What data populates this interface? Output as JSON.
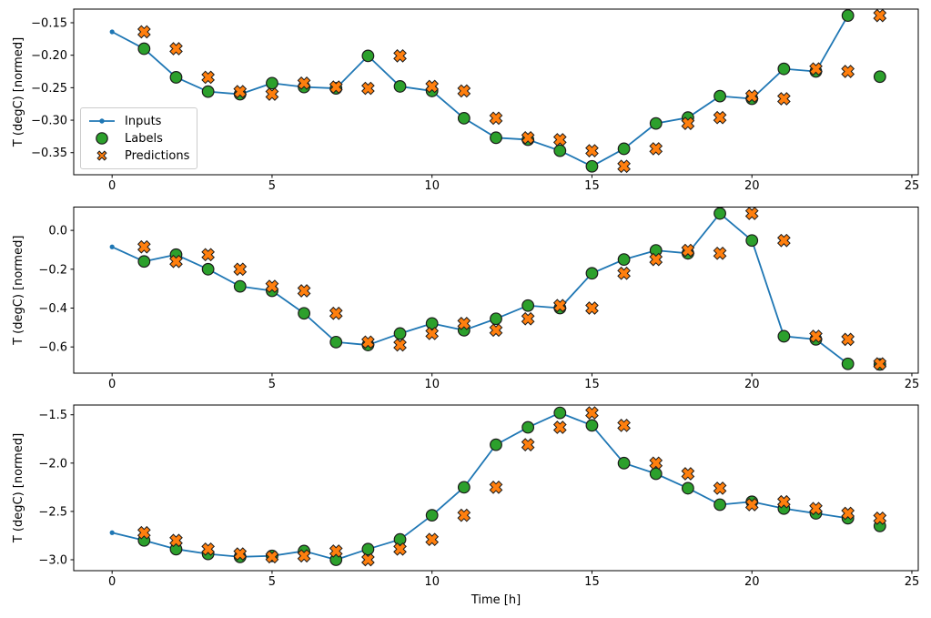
{
  "figure": {
    "xlabel": "Time [h]",
    "ylabel": "T (degC) [normed]",
    "background": "#ffffff",
    "legend": {
      "items": [
        {
          "label": "Inputs",
          "marker": "line-dot",
          "color": "#1f77b4"
        },
        {
          "label": "Labels",
          "marker": "circle",
          "color": "#2ca02c"
        },
        {
          "label": "Predictions",
          "marker": "x-cross",
          "color": "#ff7f0e"
        }
      ]
    }
  },
  "chart_data": [
    {
      "type": "line",
      "ylabel": "T (degC) [normed]",
      "grid": false,
      "legend_position": "center-left",
      "xlim": [
        -1.2,
        25.2
      ],
      "ylim": [
        -0.384,
        -0.129
      ],
      "xticks": {
        "values": [
          0,
          5,
          10,
          15,
          20,
          25
        ],
        "labels": [
          "0",
          "5",
          "10",
          "15",
          "20",
          "25"
        ]
      },
      "yticks": {
        "values": [
          -0.15,
          -0.2,
          -0.25,
          -0.3,
          -0.35
        ],
        "labels": [
          "−0.15",
          "−0.20",
          "−0.25",
          "−0.30",
          "−0.35"
        ]
      },
      "series": [
        {
          "name": "Inputs",
          "type": "line",
          "marker": "dot",
          "color": "#1f77b4",
          "x": [
            0,
            1,
            2,
            3,
            4,
            5,
            6,
            7,
            8,
            9,
            10,
            11,
            12,
            13,
            14,
            15,
            16,
            17,
            18,
            19,
            20,
            21,
            22,
            23
          ],
          "y": [
            -0.164,
            -0.19,
            -0.234,
            -0.256,
            -0.26,
            -0.243,
            -0.249,
            -0.251,
            -0.201,
            -0.248,
            -0.255,
            -0.297,
            -0.327,
            -0.33,
            -0.347,
            -0.371,
            -0.344,
            -0.305,
            -0.296,
            -0.263,
            -0.267,
            -0.221,
            -0.225,
            -0.139
          ]
        },
        {
          "name": "Labels",
          "type": "scatter",
          "marker": "circle",
          "color": "#2ca02c",
          "edge_color": "#1a1a1a",
          "x": [
            1,
            2,
            3,
            4,
            5,
            6,
            7,
            8,
            9,
            10,
            11,
            12,
            13,
            14,
            15,
            16,
            17,
            18,
            19,
            20,
            21,
            22,
            23,
            24
          ],
          "y": [
            -0.19,
            -0.234,
            -0.256,
            -0.26,
            -0.243,
            -0.249,
            -0.251,
            -0.201,
            -0.248,
            -0.255,
            -0.297,
            -0.327,
            -0.33,
            -0.347,
            -0.371,
            -0.344,
            -0.305,
            -0.296,
            -0.263,
            -0.267,
            -0.221,
            -0.225,
            -0.139,
            -0.233
          ]
        },
        {
          "name": "Predictions",
          "type": "scatter",
          "marker": "X",
          "color": "#ff7f0e",
          "edge_color": "#1a1a1a",
          "x": [
            1,
            2,
            3,
            4,
            5,
            6,
            7,
            8,
            9,
            10,
            11,
            12,
            13,
            14,
            15,
            16,
            17,
            18,
            19,
            20,
            21,
            22,
            23,
            24
          ],
          "y": [
            -0.164,
            -0.19,
            -0.234,
            -0.256,
            -0.26,
            -0.243,
            -0.249,
            -0.251,
            -0.201,
            -0.248,
            -0.255,
            -0.297,
            -0.327,
            -0.33,
            -0.347,
            -0.371,
            -0.344,
            -0.305,
            -0.296,
            -0.263,
            -0.267,
            -0.221,
            -0.225,
            -0.139
          ]
        }
      ]
    },
    {
      "type": "line",
      "ylabel": "T (degC) [normed]",
      "grid": false,
      "xlim": [
        -1.2,
        25.2
      ],
      "ylim": [
        -0.735,
        0.12
      ],
      "xticks": {
        "values": [
          0,
          5,
          10,
          15,
          20,
          25
        ],
        "labels": [
          "0",
          "5",
          "10",
          "15",
          "20",
          "25"
        ]
      },
      "yticks": {
        "values": [
          0.0,
          -0.2,
          -0.4,
          -0.6
        ],
        "labels": [
          "0.0",
          "−0.2",
          "−0.4",
          "−0.6"
        ]
      },
      "series": [
        {
          "name": "Inputs",
          "type": "line",
          "marker": "dot",
          "color": "#1f77b4",
          "x": [
            0,
            1,
            2,
            3,
            4,
            5,
            6,
            7,
            8,
            9,
            10,
            11,
            12,
            13,
            14,
            15,
            16,
            17,
            18,
            19,
            20,
            21,
            22,
            23
          ],
          "y": [
            -0.085,
            -0.16,
            -0.125,
            -0.2,
            -0.288,
            -0.311,
            -0.427,
            -0.575,
            -0.59,
            -0.531,
            -0.479,
            -0.514,
            -0.455,
            -0.387,
            -0.4,
            -0.221,
            -0.15,
            -0.103,
            -0.118,
            0.087,
            -0.052,
            -0.545,
            -0.561,
            -0.687
          ]
        },
        {
          "name": "Labels",
          "type": "scatter",
          "marker": "circle",
          "color": "#2ca02c",
          "edge_color": "#1a1a1a",
          "x": [
            1,
            2,
            3,
            4,
            5,
            6,
            7,
            8,
            9,
            10,
            11,
            12,
            13,
            14,
            15,
            16,
            17,
            18,
            19,
            20,
            21,
            22,
            23,
            24
          ],
          "y": [
            -0.16,
            -0.125,
            -0.2,
            -0.288,
            -0.311,
            -0.427,
            -0.575,
            -0.59,
            -0.531,
            -0.479,
            -0.514,
            -0.455,
            -0.387,
            -0.4,
            -0.221,
            -0.15,
            -0.103,
            -0.118,
            0.087,
            -0.052,
            -0.545,
            -0.561,
            -0.687,
            -0.69
          ]
        },
        {
          "name": "Predictions",
          "type": "scatter",
          "marker": "X",
          "color": "#ff7f0e",
          "edge_color": "#1a1a1a",
          "x": [
            1,
            2,
            3,
            4,
            5,
            6,
            7,
            8,
            9,
            10,
            11,
            12,
            13,
            14,
            15,
            16,
            17,
            18,
            19,
            20,
            21,
            22,
            23,
            24
          ],
          "y": [
            -0.085,
            -0.16,
            -0.125,
            -0.2,
            -0.288,
            -0.311,
            -0.427,
            -0.575,
            -0.59,
            -0.531,
            -0.479,
            -0.514,
            -0.455,
            -0.387,
            -0.4,
            -0.221,
            -0.15,
            -0.103,
            -0.118,
            0.087,
            -0.052,
            -0.545,
            -0.561,
            -0.687
          ]
        }
      ]
    },
    {
      "type": "line",
      "ylabel": "T (degC) [normed]",
      "xlabel": "Time [h]",
      "grid": false,
      "xlim": [
        -1.2,
        25.2
      ],
      "ylim": [
        -3.113,
        -1.399
      ],
      "xticks": {
        "values": [
          0,
          5,
          10,
          15,
          20,
          25
        ],
        "labels": [
          "0",
          "5",
          "10",
          "15",
          "20",
          "25"
        ]
      },
      "yticks": {
        "values": [
          -1.5,
          -2.0,
          -2.5,
          -3.0
        ],
        "labels": [
          "−1.5",
          "−2.0",
          "−2.5",
          "−3.0"
        ]
      },
      "series": [
        {
          "name": "Inputs",
          "type": "line",
          "marker": "dot",
          "color": "#1f77b4",
          "x": [
            0,
            1,
            2,
            3,
            4,
            5,
            6,
            7,
            8,
            9,
            10,
            11,
            12,
            13,
            14,
            15,
            16,
            17,
            18,
            19,
            20,
            21,
            22,
            23
          ],
          "y": [
            -2.72,
            -2.8,
            -2.89,
            -2.94,
            -2.97,
            -2.96,
            -2.91,
            -3.0,
            -2.89,
            -2.79,
            -2.54,
            -2.25,
            -1.81,
            -1.63,
            -1.48,
            -1.61,
            -2.0,
            -2.11,
            -2.26,
            -2.43,
            -2.4,
            -2.47,
            -2.52,
            -2.57
          ]
        },
        {
          "name": "Labels",
          "type": "scatter",
          "marker": "circle",
          "color": "#2ca02c",
          "edge_color": "#1a1a1a",
          "x": [
            1,
            2,
            3,
            4,
            5,
            6,
            7,
            8,
            9,
            10,
            11,
            12,
            13,
            14,
            15,
            16,
            17,
            18,
            19,
            20,
            21,
            22,
            23,
            24
          ],
          "y": [
            -2.8,
            -2.89,
            -2.94,
            -2.97,
            -2.96,
            -2.91,
            -3.0,
            -2.89,
            -2.79,
            -2.54,
            -2.25,
            -1.81,
            -1.63,
            -1.48,
            -1.61,
            -2.0,
            -2.11,
            -2.26,
            -2.43,
            -2.4,
            -2.47,
            -2.52,
            -2.57,
            -2.65
          ]
        },
        {
          "name": "Predictions",
          "type": "scatter",
          "marker": "X",
          "color": "#ff7f0e",
          "edge_color": "#1a1a1a",
          "x": [
            1,
            2,
            3,
            4,
            5,
            6,
            7,
            8,
            9,
            10,
            11,
            12,
            13,
            14,
            15,
            16,
            17,
            18,
            19,
            20,
            21,
            22,
            23,
            24
          ],
          "y": [
            -2.72,
            -2.8,
            -2.89,
            -2.94,
            -2.97,
            -2.96,
            -2.91,
            -3.0,
            -2.89,
            -2.79,
            -2.54,
            -2.25,
            -1.81,
            -1.63,
            -1.48,
            -1.61,
            -2.0,
            -2.11,
            -2.26,
            -2.43,
            -2.4,
            -2.47,
            -2.52,
            -2.57
          ]
        }
      ]
    }
  ]
}
